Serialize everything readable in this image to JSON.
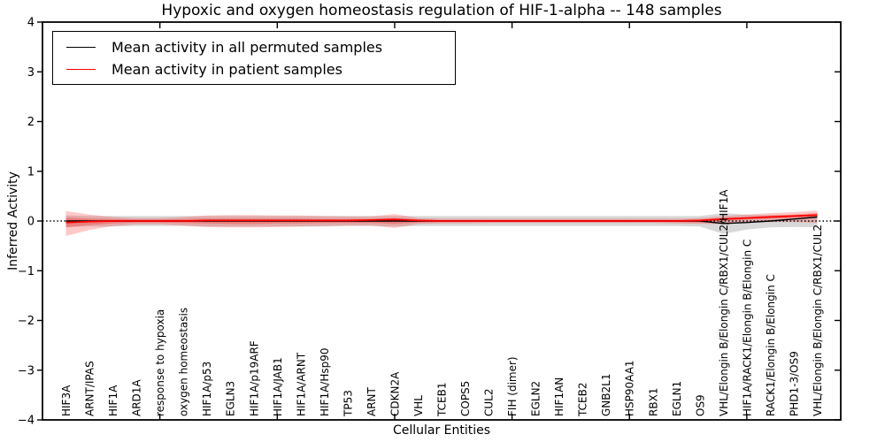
{
  "chart_data": {
    "type": "line",
    "title": "Hypoxic and oxygen homeostasis regulation of HIF-1-alpha -- 148 samples",
    "xlabel": "Cellular Entities",
    "ylabel": "Inferred Activity",
    "ylim": [
      -4,
      4
    ],
    "yticks": [
      4,
      3,
      2,
      1,
      0,
      -1,
      -2,
      -3,
      -4
    ],
    "ytick_labels": [
      "4",
      "3",
      "2",
      "1",
      "0",
      "−1",
      "−2",
      "−3",
      "−4"
    ],
    "grid": false,
    "legend_position": "upper left",
    "xtick_indices": [
      4,
      9,
      14,
      19,
      24,
      29
    ],
    "categories": [
      "HIF3A",
      "ARNT/IPAS",
      "HIF1A",
      "ARD1A",
      "response to hypoxia",
      "oxygen homeostasis",
      "HIF1A/p53",
      "EGLN3",
      "HIF1A/p19ARF",
      "HIF1A/JAB1",
      "HIF1A/ARNT",
      "HIF1A/Hsp90",
      "TP53",
      "ARNT",
      "CDKN2A",
      "VHL",
      "TCEB1",
      "COPS5",
      "CUL2",
      "FIH (dimer)",
      "EGLN2",
      "HIF1AN",
      "TCEB2",
      "GNB2L1",
      "HSP90AA1",
      "RBX1",
      "EGLN1",
      "OS9",
      "VHL/Elongin B/Elongin C/RBX1/CUL2/HIF1A",
      "HIF1A/RACK1/Elongin B/Elongin C",
      "RACK1/Elongin B/Elongin C",
      "PHD1-3/OS9",
      "VHL/Elongin B/Elongin C/RBX1/CUL2"
    ],
    "series": [
      {
        "name": "Mean activity in all permuted samples",
        "color": "#000000",
        "style": "solid",
        "values": [
          0,
          0,
          0,
          0,
          0,
          0,
          0,
          0,
          0,
          0,
          0,
          0,
          0,
          0,
          0,
          0,
          0,
          0,
          0,
          0,
          0,
          0,
          0,
          0,
          0,
          0,
          0,
          0,
          -0.05,
          -0.03,
          0,
          0.04,
          0.08
        ]
      },
      {
        "name": "Mean activity in patient samples",
        "color": "#ff0000",
        "style": "solid",
        "values": [
          -0.03,
          -0.01,
          0,
          0,
          0,
          0,
          0.01,
          0.01,
          0.01,
          0.01,
          0.01,
          0.01,
          0.01,
          0.02,
          0.03,
          0.01,
          0,
          0,
          0,
          0,
          0,
          0,
          0,
          0,
          0,
          0,
          0,
          0.01,
          0.04,
          0.06,
          0.08,
          0.1,
          0.12
        ]
      }
    ],
    "reference_line": {
      "y": 0,
      "color": "#000000",
      "style": "dotted"
    },
    "bands": [
      {
        "name": "permuted-sample-range",
        "color": "#999999",
        "opacity": 0.38,
        "upper": [
          0.11,
          0.1,
          0.1,
          0.1,
          0.1,
          0.1,
          0.1,
          0.1,
          0.1,
          0.1,
          0.1,
          0.1,
          0.1,
          0.1,
          0.1,
          0.1,
          0.1,
          0.1,
          0.1,
          0.1,
          0.1,
          0.1,
          0.1,
          0.1,
          0.1,
          0.1,
          0.1,
          0.1,
          0.16,
          0.13,
          0.12,
          0.12,
          0.13
        ],
        "lower": [
          -0.12,
          -0.11,
          -0.11,
          -0.1,
          -0.1,
          -0.1,
          -0.11,
          -0.11,
          -0.11,
          -0.11,
          -0.11,
          -0.11,
          -0.1,
          -0.1,
          -0.11,
          -0.1,
          -0.1,
          -0.1,
          -0.1,
          -0.1,
          -0.1,
          -0.1,
          -0.1,
          -0.1,
          -0.1,
          -0.1,
          -0.1,
          -0.11,
          -0.26,
          -0.17,
          -0.13,
          -0.12,
          -0.13
        ]
      },
      {
        "name": "patient-sample-range-outer",
        "color": "#ff2222",
        "opacity": 0.25,
        "upper": [
          0.2,
          0.13,
          0.08,
          0.06,
          0.06,
          0.08,
          0.11,
          0.12,
          0.12,
          0.11,
          0.11,
          0.1,
          0.09,
          0.09,
          0.14,
          0.06,
          0.05,
          0.05,
          0.05,
          0.05,
          0.05,
          0.05,
          0.05,
          0.05,
          0.05,
          0.05,
          0.05,
          0.06,
          0.1,
          0.13,
          0.16,
          0.18,
          0.21
        ],
        "lower": [
          -0.3,
          -0.18,
          -0.1,
          -0.07,
          -0.07,
          -0.09,
          -0.12,
          -0.13,
          -0.13,
          -0.12,
          -0.11,
          -0.1,
          -0.09,
          -0.09,
          -0.14,
          -0.06,
          -0.05,
          -0.05,
          -0.04,
          -0.04,
          -0.04,
          -0.04,
          -0.04,
          -0.04,
          -0.04,
          -0.04,
          -0.05,
          -0.06,
          -0.06,
          -0.03,
          -0.02,
          -0.02,
          -0.04
        ]
      },
      {
        "name": "patient-sample-range-inner",
        "color": "#ff2222",
        "opacity": 0.32,
        "upper": [
          0.07,
          0.05,
          0.04,
          0.03,
          0.03,
          0.04,
          0.05,
          0.05,
          0.05,
          0.05,
          0.05,
          0.04,
          0.04,
          0.04,
          0.06,
          0.03,
          0.02,
          0.02,
          0.02,
          0.02,
          0.02,
          0.02,
          0.02,
          0.02,
          0.02,
          0.02,
          0.02,
          0.03,
          0.06,
          0.08,
          0.11,
          0.13,
          0.16
        ],
        "lower": [
          -0.13,
          -0.08,
          -0.05,
          -0.03,
          -0.03,
          -0.04,
          -0.05,
          -0.06,
          -0.06,
          -0.05,
          -0.05,
          -0.04,
          -0.04,
          -0.04,
          -0.06,
          -0.03,
          -0.02,
          -0.02,
          -0.02,
          -0.02,
          -0.02,
          -0.02,
          -0.02,
          -0.02,
          -0.02,
          -0.02,
          -0.02,
          -0.03,
          0.0,
          0.03,
          0.05,
          0.07,
          0.08
        ]
      }
    ]
  }
}
